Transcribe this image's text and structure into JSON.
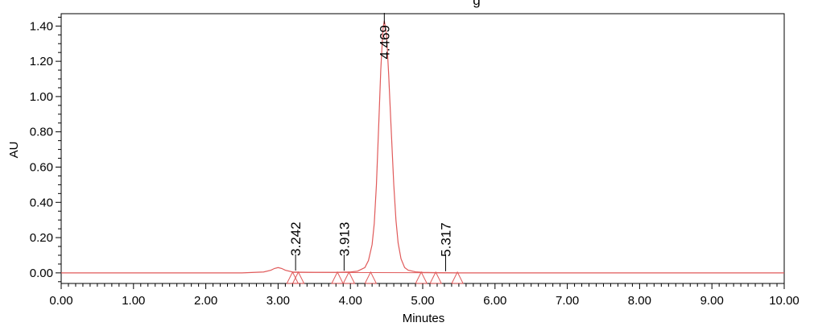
{
  "chart_data": {
    "type": "line",
    "title": "g",
    "xlabel": "Minutes",
    "ylabel": "AU",
    "xlim": [
      0.0,
      10.0
    ],
    "ylim": [
      -0.06,
      1.47
    ],
    "x_ticks": [
      "0.00",
      "1.00",
      "2.00",
      "3.00",
      "4.00",
      "5.00",
      "6.00",
      "7.00",
      "8.00",
      "9.00",
      "10.00"
    ],
    "y_ticks": [
      "0.00",
      "0.20",
      "0.40",
      "0.60",
      "0.80",
      "1.00",
      "1.20",
      "1.40"
    ],
    "grid": false,
    "series": [
      {
        "color": "#e05a5a",
        "x": [
          0.0,
          2.5,
          2.8,
          2.9,
          2.95,
          3.0,
          3.05,
          3.1,
          3.2,
          3.3,
          3.5,
          3.8,
          4.0,
          4.1,
          4.2,
          4.25,
          4.3,
          4.33,
          4.36,
          4.39,
          4.42,
          4.45,
          4.469,
          4.5,
          4.53,
          4.56,
          4.6,
          4.63,
          4.66,
          4.7,
          4.75,
          4.8,
          4.9,
          5.0,
          5.2,
          5.5,
          6.0,
          10.0
        ],
        "y": [
          0.0,
          0.0,
          0.005,
          0.015,
          0.025,
          0.03,
          0.025,
          0.015,
          0.005,
          0.004,
          0.003,
          0.003,
          0.005,
          0.01,
          0.03,
          0.07,
          0.16,
          0.28,
          0.5,
          0.82,
          1.15,
          1.38,
          1.43,
          1.35,
          1.12,
          0.85,
          0.5,
          0.3,
          0.17,
          0.08,
          0.03,
          0.015,
          0.006,
          0.003,
          0.001,
          0.0,
          0.0,
          0.0
        ]
      }
    ],
    "peak_labels": [
      {
        "time": 3.242,
        "label": "3.242",
        "height": 0.004
      },
      {
        "time": 3.913,
        "label": "3.913",
        "height": 0.003
      },
      {
        "time": 4.469,
        "label": "4.469",
        "height": 1.43
      },
      {
        "time": 5.317,
        "label": "5.317",
        "height": 0.0
      }
    ],
    "integration_markers": [
      3.2,
      3.28,
      3.82,
      3.98,
      4.28,
      4.98,
      5.18,
      5.48
    ]
  }
}
